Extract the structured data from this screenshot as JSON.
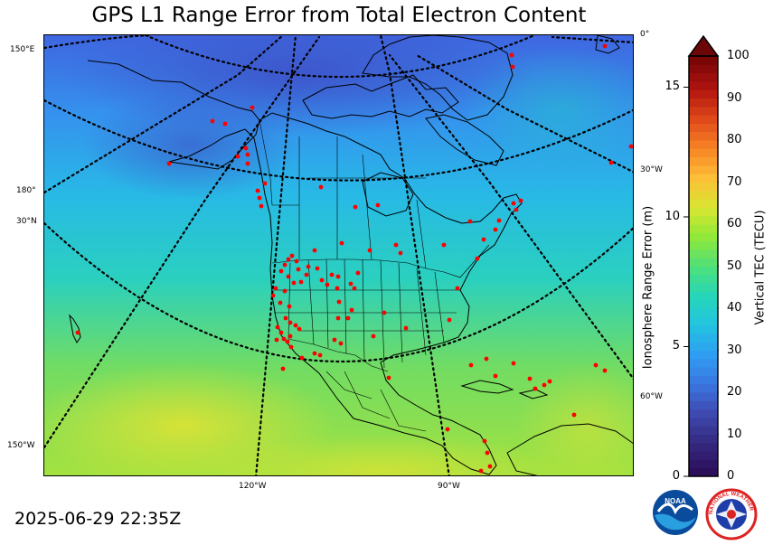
{
  "title": "GPS L1 Range Error from Total Electron Content",
  "timestamp": "2025-06-29 22:35Z",
  "colorbar": {
    "label": "Vertical TEC (TECU)",
    "min": 0,
    "max": 100,
    "ticks": [
      "0",
      "10",
      "20",
      "30",
      "40",
      "50",
      "60",
      "70",
      "80",
      "90",
      "100"
    ],
    "colors": [
      "#2c0f5a",
      "#35297f",
      "#3e4ab0",
      "#3a75e0",
      "#2f9ef2",
      "#23c3e0",
      "#26d6b8",
      "#4fe07a",
      "#90e838",
      "#d9e631",
      "#fcbf37",
      "#f78526",
      "#e0491a",
      "#b21410",
      "#7a0606"
    ],
    "extend_color": "#6b0707"
  },
  "range_axis": {
    "label": "Ionosphere Range Error (m)",
    "min": 0,
    "max": 16.2,
    "ticks": [
      "0",
      "5",
      "10",
      "15"
    ]
  },
  "graticule_labels": {
    "left": [
      "150°E",
      "180°",
      "30°N",
      "150°W"
    ],
    "right": [
      "0°",
      "30°W",
      "60°W"
    ],
    "bottom": [
      "120°W",
      "90°W"
    ]
  },
  "logos": {
    "noaa": "NOAA",
    "nws": "NATIONAL WEATHER SERVICE"
  },
  "stations": [
    [
      234,
      133
    ],
    [
      248,
      136
    ],
    [
      278,
      118
    ],
    [
      271,
      163
    ],
    [
      273,
      170
    ],
    [
      262,
      172
    ],
    [
      273,
      180
    ],
    [
      186,
      180
    ],
    [
      292,
      202
    ],
    [
      284,
      210
    ],
    [
      286,
      218
    ],
    [
      288,
      227
    ],
    [
      354,
      206
    ],
    [
      417,
      226
    ],
    [
      392,
      228
    ],
    [
      437,
      270
    ],
    [
      408,
      276
    ],
    [
      442,
      279
    ],
    [
      377,
      268
    ],
    [
      347,
      276
    ],
    [
      322,
      282
    ],
    [
      490,
      270
    ],
    [
      519,
      244
    ],
    [
      534,
      264
    ],
    [
      547,
      253
    ],
    [
      551,
      243
    ],
    [
      570,
      231
    ],
    [
      575,
      221
    ],
    [
      567,
      224
    ],
    [
      527,
      285
    ],
    [
      505,
      318
    ],
    [
      496,
      353
    ],
    [
      448,
      362
    ],
    [
      424,
      345
    ],
    [
      412,
      371
    ],
    [
      388,
      342
    ],
    [
      384,
      351
    ],
    [
      373,
      351
    ],
    [
      374,
      333
    ],
    [
      372,
      318
    ],
    [
      391,
      318
    ],
    [
      395,
      301
    ],
    [
      387,
      313
    ],
    [
      373,
      305
    ],
    [
      366,
      303
    ],
    [
      361,
      314
    ],
    [
      355,
      309
    ],
    [
      350,
      296
    ],
    [
      340,
      294
    ],
    [
      338,
      303
    ],
    [
      332,
      311
    ],
    [
      329,
      297
    ],
    [
      327,
      288
    ],
    [
      318,
      286
    ],
    [
      314,
      292
    ],
    [
      310,
      299
    ],
    [
      318,
      305
    ],
    [
      324,
      312
    ],
    [
      314,
      321
    ],
    [
      304,
      318
    ],
    [
      301,
      326
    ],
    [
      309,
      334
    ],
    [
      319,
      338
    ],
    [
      315,
      351
    ],
    [
      320,
      356
    ],
    [
      326,
      359
    ],
    [
      330,
      363
    ],
    [
      306,
      361
    ],
    [
      310,
      367
    ],
    [
      313,
      374
    ],
    [
      317,
      377
    ],
    [
      321,
      383
    ],
    [
      305,
      375
    ],
    [
      320,
      371
    ],
    [
      347,
      390
    ],
    [
      333,
      395
    ],
    [
      353,
      392
    ],
    [
      369,
      375
    ],
    [
      376,
      379
    ],
    [
      312,
      407
    ],
    [
      429,
      417
    ],
    [
      520,
      403
    ],
    [
      537,
      396
    ],
    [
      547,
      415
    ],
    [
      567,
      401
    ],
    [
      585,
      418
    ],
    [
      591,
      429
    ],
    [
      601,
      425
    ],
    [
      607,
      421
    ],
    [
      658,
      403
    ],
    [
      668,
      409
    ],
    [
      634,
      458
    ],
    [
      494,
      474
    ],
    [
      535,
      487
    ],
    [
      538,
      500
    ],
    [
      541,
      515
    ],
    [
      531,
      520
    ],
    [
      85,
      367
    ],
    [
      565,
      60
    ],
    [
      668,
      50
    ],
    [
      697,
      161
    ],
    [
      675,
      179
    ],
    [
      566,
      73
    ]
  ]
}
